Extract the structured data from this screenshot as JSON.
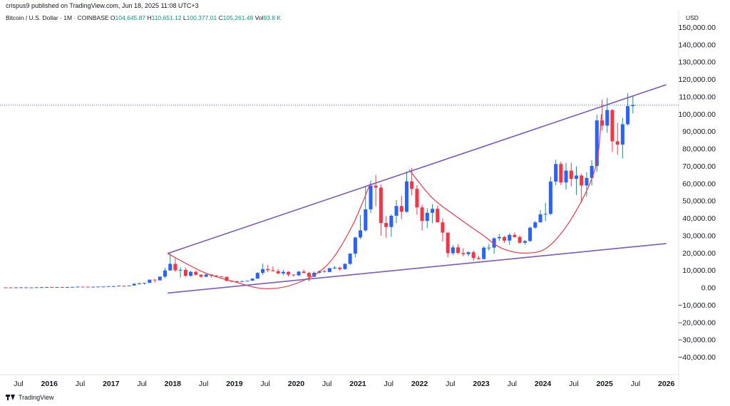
{
  "header": {
    "published_line": "crispus9 published on TradingView.com, Jun 18, 2025 11:08 UTC+3",
    "symbol_line": "Bitcoin / U.S. Dollar · 1M · COINBASE",
    "ohlc": [
      {
        "label": "O",
        "value": "104,645.87"
      },
      {
        "label": "H",
        "value": "110,651.12"
      },
      {
        "label": "L",
        "value": "100,377.01"
      },
      {
        "label": "C",
        "value": "105,261.48"
      },
      {
        "label": "Vol",
        "value": "93.8 K"
      }
    ],
    "currency": "USD"
  },
  "footer": {
    "brand": "TradingView"
  },
  "colors": {
    "up": "#2962ff",
    "down": "#f23645",
    "wick_up": "#089981",
    "wick_down": "#f23645",
    "trendline": "#7e57c2",
    "cup_curve": "#f23645",
    "price_line": "#2962ff",
    "text": "#131722"
  },
  "chart_data": {
    "type": "candlestick",
    "title": "Bitcoin / U.S. Dollar · 1M · COINBASE",
    "xlabel": "",
    "ylabel": "USD",
    "ylim": [
      -50000,
      160000
    ],
    "grid": false,
    "y_ticks": [
      "150,000.00",
      "140,000.00",
      "130,000.00",
      "120,000.00",
      "110,000.00",
      "100,000.00",
      "90,000.00",
      "80,000.00",
      "70,000.00",
      "60,000.00",
      "50,000.00",
      "40,000.00",
      "30,000.00",
      "20,000.00",
      "10,000.00",
      "0.00",
      "−10,000.00",
      "−20,000.00",
      "−30,000.00",
      "−40,000.00"
    ],
    "y_tick_values": [
      150000,
      140000,
      130000,
      120000,
      110000,
      100000,
      90000,
      80000,
      70000,
      60000,
      50000,
      40000,
      30000,
      20000,
      10000,
      0,
      -10000,
      -20000,
      -30000,
      -40000
    ],
    "x_ticks": [
      {
        "label": "Jul",
        "t": 2015.5
      },
      {
        "label": "2016",
        "t": 2016.0
      },
      {
        "label": "Jul",
        "t": 2016.5
      },
      {
        "label": "2017",
        "t": 2017.0
      },
      {
        "label": "Jul",
        "t": 2017.5
      },
      {
        "label": "2018",
        "t": 2018.0
      },
      {
        "label": "Jul",
        "t": 2018.5
      },
      {
        "label": "2019",
        "t": 2019.0
      },
      {
        "label": "Jul",
        "t": 2019.5
      },
      {
        "label": "2020",
        "t": 2020.0
      },
      {
        "label": "Jul",
        "t": 2020.5
      },
      {
        "label": "2021",
        "t": 2021.0
      },
      {
        "label": "Jul",
        "t": 2021.5
      },
      {
        "label": "2022",
        "t": 2022.0
      },
      {
        "label": "Jul",
        "t": 2022.5
      },
      {
        "label": "2023",
        "t": 2023.0
      },
      {
        "label": "Jul",
        "t": 2023.5
      },
      {
        "label": "2024",
        "t": 2024.0
      },
      {
        "label": "Jul",
        "t": 2024.5
      },
      {
        "label": "2025",
        "t": 2025.0
      },
      {
        "label": "Jul",
        "t": 2025.5
      },
      {
        "label": "2026",
        "t": 2026.0
      }
    ],
    "x_range": [
      2015.2,
      2026.2
    ],
    "last_price": 105261.48,
    "candles": [
      {
        "t": 2015.0,
        "o": 320,
        "h": 380,
        "l": 170,
        "c": 220
      },
      {
        "t": 2015.083,
        "o": 220,
        "h": 270,
        "l": 200,
        "c": 255
      },
      {
        "t": 2015.167,
        "o": 255,
        "h": 300,
        "l": 240,
        "c": 245
      },
      {
        "t": 2015.25,
        "o": 245,
        "h": 265,
        "l": 215,
        "c": 235
      },
      {
        "t": 2015.333,
        "o": 235,
        "h": 250,
        "l": 225,
        "c": 230
      },
      {
        "t": 2015.417,
        "o": 230,
        "h": 270,
        "l": 220,
        "c": 265
      },
      {
        "t": 2015.5,
        "o": 265,
        "h": 320,
        "l": 255,
        "c": 285
      },
      {
        "t": 2015.583,
        "o": 285,
        "h": 285,
        "l": 200,
        "c": 230
      },
      {
        "t": 2015.667,
        "o": 230,
        "h": 245,
        "l": 225,
        "c": 235
      },
      {
        "t": 2015.75,
        "o": 235,
        "h": 330,
        "l": 235,
        "c": 315
      },
      {
        "t": 2015.833,
        "o": 315,
        "h": 500,
        "l": 310,
        "c": 375
      },
      {
        "t": 2015.917,
        "o": 375,
        "h": 470,
        "l": 355,
        "c": 430
      },
      {
        "t": 2016.0,
        "o": 430,
        "h": 460,
        "l": 350,
        "c": 370
      },
      {
        "t": 2016.083,
        "o": 370,
        "h": 440,
        "l": 370,
        "c": 435
      },
      {
        "t": 2016.167,
        "o": 435,
        "h": 440,
        "l": 405,
        "c": 415
      },
      {
        "t": 2016.25,
        "o": 415,
        "h": 465,
        "l": 410,
        "c": 450
      },
      {
        "t": 2016.333,
        "o": 450,
        "h": 550,
        "l": 440,
        "c": 530
      },
      {
        "t": 2016.417,
        "o": 530,
        "h": 780,
        "l": 530,
        "c": 675
      },
      {
        "t": 2016.5,
        "o": 675,
        "h": 700,
        "l": 610,
        "c": 625
      },
      {
        "t": 2016.583,
        "o": 625,
        "h": 625,
        "l": 540,
        "c": 575
      },
      {
        "t": 2016.667,
        "o": 575,
        "h": 610,
        "l": 570,
        "c": 610
      },
      {
        "t": 2016.75,
        "o": 610,
        "h": 730,
        "l": 605,
        "c": 700
      },
      {
        "t": 2016.833,
        "o": 700,
        "h": 755,
        "l": 690,
        "c": 745
      },
      {
        "t": 2016.917,
        "o": 745,
        "h": 975,
        "l": 745,
        "c": 965
      },
      {
        "t": 2017.0,
        "o": 965,
        "h": 1150,
        "l": 750,
        "c": 970
      },
      {
        "t": 2017.083,
        "o": 970,
        "h": 1200,
        "l": 940,
        "c": 1190
      },
      {
        "t": 2017.167,
        "o": 1190,
        "h": 1300,
        "l": 900,
        "c": 1080
      },
      {
        "t": 2017.25,
        "o": 1080,
        "h": 1350,
        "l": 1080,
        "c": 1350
      },
      {
        "t": 2017.333,
        "o": 1350,
        "h": 2760,
        "l": 1350,
        "c": 2300
      },
      {
        "t": 2017.417,
        "o": 2300,
        "h": 3000,
        "l": 2100,
        "c": 2500
      },
      {
        "t": 2017.5,
        "o": 2500,
        "h": 2900,
        "l": 1800,
        "c": 2860
      },
      {
        "t": 2017.583,
        "o": 2860,
        "h": 4750,
        "l": 2700,
        "c": 4700
      },
      {
        "t": 2017.667,
        "o": 4700,
        "h": 5000,
        "l": 2950,
        "c": 4330
      },
      {
        "t": 2017.75,
        "o": 4330,
        "h": 6450,
        "l": 4150,
        "c": 6450
      },
      {
        "t": 2017.833,
        "o": 6450,
        "h": 11500,
        "l": 5500,
        "c": 10000
      },
      {
        "t": 2017.917,
        "o": 10000,
        "h": 19800,
        "l": 10000,
        "c": 13800
      },
      {
        "t": 2018.0,
        "o": 13800,
        "h": 17200,
        "l": 9200,
        "c": 10100
      },
      {
        "t": 2018.083,
        "o": 10100,
        "h": 11800,
        "l": 5900,
        "c": 10300
      },
      {
        "t": 2018.167,
        "o": 10300,
        "h": 11700,
        "l": 6400,
        "c": 6900
      },
      {
        "t": 2018.25,
        "o": 6900,
        "h": 9800,
        "l": 6500,
        "c": 9200
      },
      {
        "t": 2018.333,
        "o": 9200,
        "h": 10000,
        "l": 7050,
        "c": 7500
      },
      {
        "t": 2018.417,
        "o": 7500,
        "h": 7800,
        "l": 5800,
        "c": 6400
      },
      {
        "t": 2018.5,
        "o": 6400,
        "h": 8500,
        "l": 6100,
        "c": 7700
      },
      {
        "t": 2018.583,
        "o": 7700,
        "h": 7700,
        "l": 5900,
        "c": 7000
      },
      {
        "t": 2018.667,
        "o": 7000,
        "h": 7400,
        "l": 6100,
        "c": 6600
      },
      {
        "t": 2018.75,
        "o": 6600,
        "h": 6800,
        "l": 6150,
        "c": 6300
      },
      {
        "t": 2018.833,
        "o": 6300,
        "h": 6500,
        "l": 3600,
        "c": 4000
      },
      {
        "t": 2018.917,
        "o": 4000,
        "h": 4300,
        "l": 3150,
        "c": 3700
      },
      {
        "t": 2019.0,
        "o": 3700,
        "h": 4100,
        "l": 3350,
        "c": 3450
      },
      {
        "t": 2019.083,
        "o": 3450,
        "h": 4200,
        "l": 3400,
        "c": 3800
      },
      {
        "t": 2019.167,
        "o": 3800,
        "h": 4150,
        "l": 3700,
        "c": 4100
      },
      {
        "t": 2019.25,
        "o": 4100,
        "h": 5600,
        "l": 4100,
        "c": 5300
      },
      {
        "t": 2019.333,
        "o": 5300,
        "h": 9000,
        "l": 5300,
        "c": 8600
      },
      {
        "t": 2019.417,
        "o": 8600,
        "h": 13900,
        "l": 7500,
        "c": 10800
      },
      {
        "t": 2019.5,
        "o": 10800,
        "h": 13200,
        "l": 9100,
        "c": 10100
      },
      {
        "t": 2019.583,
        "o": 10100,
        "h": 12300,
        "l": 9400,
        "c": 9600
      },
      {
        "t": 2019.667,
        "o": 9600,
        "h": 10900,
        "l": 7700,
        "c": 8300
      },
      {
        "t": 2019.75,
        "o": 8300,
        "h": 10400,
        "l": 7300,
        "c": 9200
      },
      {
        "t": 2019.833,
        "o": 9200,
        "h": 9500,
        "l": 6500,
        "c": 7600
      },
      {
        "t": 2019.917,
        "o": 7600,
        "h": 7750,
        "l": 6450,
        "c": 7200
      },
      {
        "t": 2020.0,
        "o": 7200,
        "h": 9600,
        "l": 6850,
        "c": 9350
      },
      {
        "t": 2020.083,
        "o": 9350,
        "h": 10500,
        "l": 8400,
        "c": 8550
      },
      {
        "t": 2020.167,
        "o": 8550,
        "h": 9200,
        "l": 3850,
        "c": 6400
      },
      {
        "t": 2020.25,
        "o": 6400,
        "h": 9450,
        "l": 6200,
        "c": 8650
      },
      {
        "t": 2020.333,
        "o": 8650,
        "h": 10100,
        "l": 8100,
        "c": 9450
      },
      {
        "t": 2020.417,
        "o": 9450,
        "h": 10400,
        "l": 8900,
        "c": 9150
      },
      {
        "t": 2020.5,
        "o": 9150,
        "h": 11450,
        "l": 8950,
        "c": 11350
      },
      {
        "t": 2020.583,
        "o": 11350,
        "h": 12500,
        "l": 10650,
        "c": 11650
      },
      {
        "t": 2020.667,
        "o": 11650,
        "h": 12100,
        "l": 9850,
        "c": 10800
      },
      {
        "t": 2020.75,
        "o": 10800,
        "h": 14100,
        "l": 10400,
        "c": 13800
      },
      {
        "t": 2020.833,
        "o": 13800,
        "h": 19900,
        "l": 13200,
        "c": 19700
      },
      {
        "t": 2020.917,
        "o": 19700,
        "h": 29300,
        "l": 17600,
        "c": 29000
      },
      {
        "t": 2021.0,
        "o": 29000,
        "h": 41950,
        "l": 28100,
        "c": 33100
      },
      {
        "t": 2021.083,
        "o": 33100,
        "h": 58350,
        "l": 32300,
        "c": 45200
      },
      {
        "t": 2021.167,
        "o": 45200,
        "h": 61800,
        "l": 43000,
        "c": 58800
      },
      {
        "t": 2021.25,
        "o": 58800,
        "h": 64900,
        "l": 47000,
        "c": 57700
      },
      {
        "t": 2021.333,
        "o": 57700,
        "h": 59500,
        "l": 30000,
        "c": 37300
      },
      {
        "t": 2021.417,
        "o": 37300,
        "h": 41300,
        "l": 28800,
        "c": 35000
      },
      {
        "t": 2021.5,
        "o": 35000,
        "h": 42300,
        "l": 29300,
        "c": 41500
      },
      {
        "t": 2021.583,
        "o": 41500,
        "h": 50500,
        "l": 37300,
        "c": 47100
      },
      {
        "t": 2021.667,
        "o": 47100,
        "h": 52900,
        "l": 39600,
        "c": 43800
      },
      {
        "t": 2021.75,
        "o": 43800,
        "h": 67000,
        "l": 43300,
        "c": 61300
      },
      {
        "t": 2021.833,
        "o": 61300,
        "h": 69000,
        "l": 53300,
        "c": 57000
      },
      {
        "t": 2021.917,
        "o": 57000,
        "h": 59100,
        "l": 42000,
        "c": 46300
      },
      {
        "t": 2022.0,
        "o": 46300,
        "h": 47900,
        "l": 33000,
        "c": 38500
      },
      {
        "t": 2022.083,
        "o": 38500,
        "h": 45800,
        "l": 34300,
        "c": 43200
      },
      {
        "t": 2022.167,
        "o": 43200,
        "h": 48200,
        "l": 37200,
        "c": 45500
      },
      {
        "t": 2022.25,
        "o": 45500,
        "h": 47450,
        "l": 37600,
        "c": 37700
      },
      {
        "t": 2022.333,
        "o": 37700,
        "h": 40000,
        "l": 26700,
        "c": 31800
      },
      {
        "t": 2022.417,
        "o": 31800,
        "h": 31900,
        "l": 17600,
        "c": 19950
      },
      {
        "t": 2022.5,
        "o": 19950,
        "h": 24650,
        "l": 18800,
        "c": 23300
      },
      {
        "t": 2022.583,
        "o": 23300,
        "h": 25200,
        "l": 19550,
        "c": 20050
      },
      {
        "t": 2022.667,
        "o": 20050,
        "h": 22800,
        "l": 18150,
        "c": 19400
      },
      {
        "t": 2022.75,
        "o": 19400,
        "h": 21100,
        "l": 18200,
        "c": 20500
      },
      {
        "t": 2022.833,
        "o": 20500,
        "h": 21500,
        "l": 15500,
        "c": 17150
      },
      {
        "t": 2022.917,
        "o": 17150,
        "h": 18400,
        "l": 16300,
        "c": 16550
      },
      {
        "t": 2023.0,
        "o": 16550,
        "h": 23950,
        "l": 16500,
        "c": 23150
      },
      {
        "t": 2023.083,
        "o": 23150,
        "h": 25250,
        "l": 21400,
        "c": 23150
      },
      {
        "t": 2023.167,
        "o": 23150,
        "h": 29200,
        "l": 19550,
        "c": 28500
      },
      {
        "t": 2023.25,
        "o": 28500,
        "h": 31050,
        "l": 26950,
        "c": 29250
      },
      {
        "t": 2023.333,
        "o": 29250,
        "h": 29850,
        "l": 25800,
        "c": 27200
      },
      {
        "t": 2023.417,
        "o": 27200,
        "h": 31450,
        "l": 24750,
        "c": 30500
      },
      {
        "t": 2023.5,
        "o": 30500,
        "h": 31850,
        "l": 28850,
        "c": 29250
      },
      {
        "t": 2023.583,
        "o": 29250,
        "h": 30200,
        "l": 25300,
        "c": 25950
      },
      {
        "t": 2023.667,
        "o": 25950,
        "h": 27500,
        "l": 24900,
        "c": 26950
      },
      {
        "t": 2023.75,
        "o": 26950,
        "h": 35200,
        "l": 26550,
        "c": 34650
      },
      {
        "t": 2023.833,
        "o": 34650,
        "h": 38450,
        "l": 34100,
        "c": 37700
      },
      {
        "t": 2023.917,
        "o": 37700,
        "h": 44700,
        "l": 37650,
        "c": 42300
      },
      {
        "t": 2024.0,
        "o": 42300,
        "h": 48950,
        "l": 38500,
        "c": 42600
      },
      {
        "t": 2024.083,
        "o": 42600,
        "h": 63900,
        "l": 41900,
        "c": 61200
      },
      {
        "t": 2024.167,
        "o": 61200,
        "h": 73800,
        "l": 59000,
        "c": 71300
      },
      {
        "t": 2024.25,
        "o": 71300,
        "h": 72750,
        "l": 59200,
        "c": 60650
      },
      {
        "t": 2024.333,
        "o": 60650,
        "h": 71950,
        "l": 56550,
        "c": 67500
      },
      {
        "t": 2024.417,
        "o": 67500,
        "h": 71950,
        "l": 58400,
        "c": 62750
      },
      {
        "t": 2024.5,
        "o": 62750,
        "h": 70000,
        "l": 53500,
        "c": 64650
      },
      {
        "t": 2024.583,
        "o": 64650,
        "h": 65600,
        "l": 49000,
        "c": 58950
      },
      {
        "t": 2024.667,
        "o": 58950,
        "h": 66500,
        "l": 52550,
        "c": 63300
      },
      {
        "t": 2024.75,
        "o": 63300,
        "h": 73600,
        "l": 58900,
        "c": 70200
      },
      {
        "t": 2024.833,
        "o": 70200,
        "h": 99600,
        "l": 66800,
        "c": 96400
      },
      {
        "t": 2024.917,
        "o": 96400,
        "h": 108350,
        "l": 90500,
        "c": 93400
      },
      {
        "t": 2025.0,
        "o": 93400,
        "h": 109400,
        "l": 89250,
        "c": 102400
      },
      {
        "t": 2025.083,
        "o": 102400,
        "h": 102750,
        "l": 78200,
        "c": 84350
      },
      {
        "t": 2025.167,
        "o": 84350,
        "h": 95000,
        "l": 76650,
        "c": 82500
      },
      {
        "t": 2025.25,
        "o": 82500,
        "h": 97900,
        "l": 74500,
        "c": 94200
      },
      {
        "t": 2025.333,
        "o": 94200,
        "h": 112000,
        "l": 93400,
        "c": 104600
      },
      {
        "t": 2025.417,
        "o": 104645.87,
        "h": 110651.12,
        "l": 100377.01,
        "c": 105261.48
      }
    ],
    "trendlines": [
      {
        "name": "upper",
        "from": {
          "t": 2017.917,
          "v": 19800
        },
        "to": {
          "t": 2026.0,
          "v": 117000
        }
      },
      {
        "name": "lower",
        "from": {
          "t": 2017.917,
          "v": -3000
        },
        "to": {
          "t": 2026.0,
          "v": 25500
        }
      }
    ],
    "curves": [
      {
        "name": "cup-1",
        "points": [
          [
            2017.917,
            19800
          ],
          [
            2018.5,
            9000
          ],
          [
            2019.0,
            3500
          ],
          [
            2019.5,
            -500
          ],
          [
            2020.0,
            2500
          ],
          [
            2020.5,
            13000
          ],
          [
            2020.9,
            35000
          ],
          [
            2021.2,
            60000
          ]
        ]
      },
      {
        "name": "cup-2",
        "points": [
          [
            2021.833,
            68000
          ],
          [
            2022.2,
            52000
          ],
          [
            2022.6,
            41000
          ],
          [
            2023.0,
            31000
          ],
          [
            2023.35,
            22500
          ],
          [
            2023.75,
            20000
          ],
          [
            2024.1,
            24000
          ],
          [
            2024.5,
            42000
          ],
          [
            2024.85,
            69000
          ],
          [
            2024.95,
            100000
          ]
        ]
      }
    ]
  }
}
